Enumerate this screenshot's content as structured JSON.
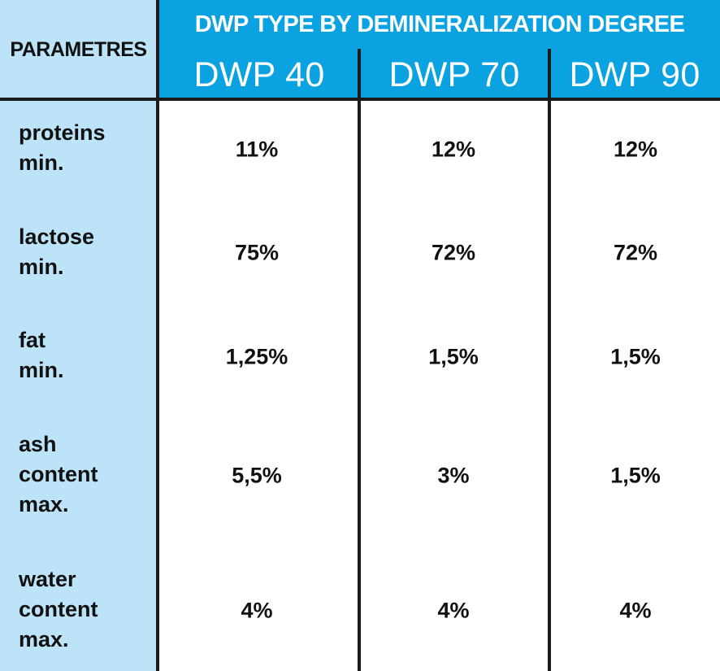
{
  "table": {
    "parameters_header": "PARAMETRES",
    "group_header": "DWP TYPE BY DEMINERALIZATION DEGREE",
    "columns": [
      "DWP 40",
      "DWP 70",
      "DWP 90"
    ],
    "rows": [
      {
        "label_lines": [
          "proteins",
          "min."
        ],
        "values": [
          "11%",
          "12%",
          "12%"
        ]
      },
      {
        "label_lines": [
          "lactose",
          "min."
        ],
        "values": [
          "75%",
          "72%",
          "72%"
        ]
      },
      {
        "label_lines": [
          "fat",
          "min."
        ],
        "values": [
          "1,25%",
          "1,5%",
          "1,5%"
        ]
      },
      {
        "label_lines": [
          "ash",
          "content",
          "max."
        ],
        "values": [
          "5,5%",
          "3%",
          "1,5%"
        ]
      },
      {
        "label_lines": [
          "water",
          "content",
          "max."
        ],
        "values": [
          "4%",
          "4%",
          "4%"
        ]
      }
    ]
  },
  "colors": {
    "header_blue": "#0aa2e0",
    "parameter_column_light_blue": "#bde3f8",
    "grid_lines": "#1b1b1b"
  }
}
